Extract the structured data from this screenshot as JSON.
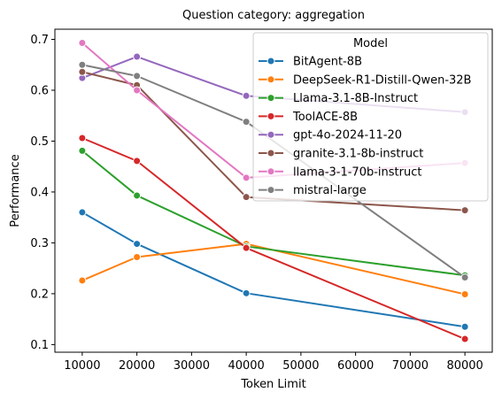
{
  "chart_data": {
    "type": "line",
    "title": "Question category: aggregation",
    "xlabel": "Token Limit",
    "ylabel": "Performance",
    "x": [
      10000,
      20000,
      40000,
      80000
    ],
    "xlim": [
      5000,
      85000
    ],
    "ylim": [
      0.085,
      0.72
    ],
    "xticks": [
      10000,
      20000,
      30000,
      40000,
      50000,
      60000,
      70000,
      80000
    ],
    "yticks": [
      0.1,
      0.2,
      0.3,
      0.4,
      0.5,
      0.6,
      0.7
    ],
    "ytick_labels": [
      "0.1",
      "0.2",
      "0.3",
      "0.4",
      "0.5",
      "0.6",
      "0.7"
    ],
    "grid": false,
    "legend_title": "Model",
    "legend_position": "top-right",
    "series": [
      {
        "name": "BitAgent-8B",
        "color": "#1f77b4",
        "values": [
          0.36,
          0.298,
          0.201,
          0.135
        ]
      },
      {
        "name": "DeepSeek-R1-Distill-Qwen-32B",
        "color": "#ff7f0e",
        "values": [
          0.226,
          0.272,
          0.298,
          0.199
        ]
      },
      {
        "name": "Llama-3.1-8B-Instruct",
        "color": "#2ca02c",
        "values": [
          0.481,
          0.393,
          0.293,
          0.236
        ]
      },
      {
        "name": "ToolACE-8B",
        "color": "#d62728",
        "values": [
          0.506,
          0.461,
          0.29,
          0.111
        ]
      },
      {
        "name": "gpt-4o-2024-11-20",
        "color": "#9467bd",
        "values": [
          0.624,
          0.666,
          0.589,
          0.557
        ]
      },
      {
        "name": "granite-3.1-8b-instruct",
        "color": "#8c564b",
        "values": [
          0.636,
          0.61,
          0.39,
          0.364
        ]
      },
      {
        "name": "llama-3-1-70b-instruct",
        "color": "#e377c2",
        "values": [
          0.693,
          0.6,
          0.428,
          0.457
        ]
      },
      {
        "name": "mistral-large",
        "color": "#7f7f7f",
        "values": [
          0.65,
          0.628,
          0.538,
          0.232
        ]
      }
    ]
  }
}
